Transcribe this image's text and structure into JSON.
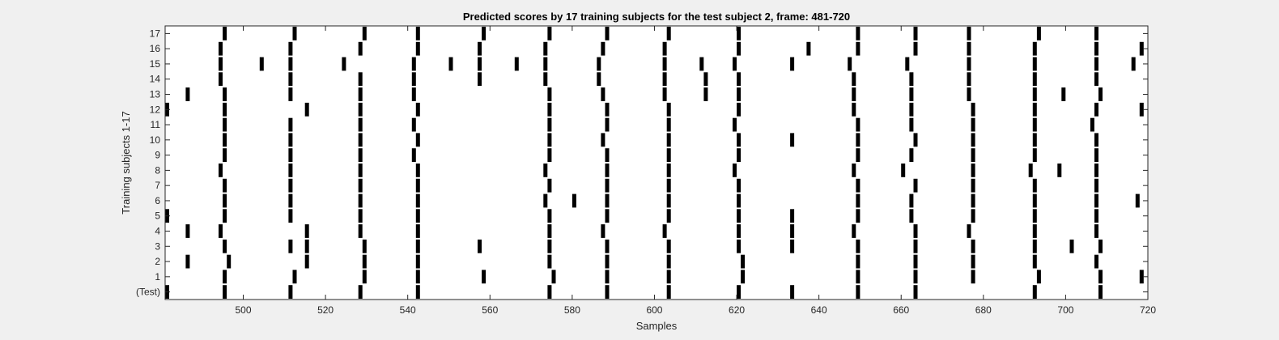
{
  "chart_data": {
    "type": "heatmap",
    "title": "Predicted scores by 17 training subjects for the test subject 2, frame: 481-720",
    "xlabel": "Samples",
    "ylabel": "Training subjects 1-17",
    "xlim": [
      481,
      720
    ],
    "xticks": [
      500,
      520,
      540,
      560,
      580,
      600,
      620,
      640,
      660,
      680,
      700,
      720
    ],
    "yticklabels": [
      "(Test)",
      "1",
      "2",
      "3",
      "4",
      "5",
      "6",
      "7",
      "8",
      "9",
      "10",
      "11",
      "12",
      "13",
      "14",
      "15",
      "16",
      "17"
    ],
    "grid": false,
    "colors": {
      "background": "#f0f0f0",
      "axes": "#ffffff",
      "mark": "#000000",
      "text": "#262626"
    },
    "rows": [
      {
        "label": "(Test)",
        "samples": [
          481,
          495,
          511,
          528,
          542,
          574,
          588,
          603,
          620,
          633,
          649,
          663,
          692,
          708
        ]
      },
      {
        "label": "1",
        "samples": [
          495,
          512,
          529,
          542,
          558,
          575,
          588,
          603,
          621,
          649,
          663,
          677,
          693,
          708,
          718
        ]
      },
      {
        "label": "2",
        "samples": [
          486,
          496,
          515,
          529,
          542,
          574,
          588,
          603,
          621,
          649,
          663,
          677,
          692,
          707
        ]
      },
      {
        "label": "3",
        "samples": [
          495,
          511,
          515,
          529,
          542,
          557,
          574,
          588,
          603,
          620,
          633,
          649,
          663,
          677,
          692,
          701,
          708
        ]
      },
      {
        "label": "4",
        "samples": [
          486,
          494,
          515,
          528,
          542,
          574,
          587,
          602,
          620,
          633,
          648,
          663,
          676,
          692,
          707
        ]
      },
      {
        "label": "5",
        "samples": [
          481,
          495,
          511,
          528,
          542,
          574,
          588,
          603,
          620,
          633,
          649,
          662,
          677,
          692,
          707
        ]
      },
      {
        "label": "6",
        "samples": [
          495,
          511,
          528,
          542,
          573,
          580,
          588,
          603,
          620,
          649,
          662,
          677,
          692,
          707,
          717
        ]
      },
      {
        "label": "7",
        "samples": [
          495,
          511,
          528,
          542,
          574,
          588,
          603,
          620,
          649,
          663,
          677,
          692,
          707
        ]
      },
      {
        "label": "8",
        "samples": [
          494,
          511,
          528,
          542,
          573,
          588,
          603,
          619,
          648,
          660,
          677,
          691,
          698,
          707
        ]
      },
      {
        "label": "9",
        "samples": [
          495,
          511,
          528,
          541,
          574,
          588,
          603,
          620,
          649,
          662,
          677,
          692,
          707
        ]
      },
      {
        "label": "10",
        "samples": [
          495,
          511,
          528,
          542,
          574,
          587,
          603,
          620,
          633,
          649,
          663,
          677,
          692,
          707
        ]
      },
      {
        "label": "11",
        "samples": [
          495,
          511,
          528,
          541,
          574,
          588,
          603,
          619,
          649,
          662,
          677,
          692,
          706
        ]
      },
      {
        "label": "12",
        "samples": [
          481,
          495,
          515,
          528,
          542,
          574,
          588,
          603,
          620,
          648,
          662,
          677,
          692,
          707,
          718
        ]
      },
      {
        "label": "13",
        "samples": [
          486,
          495,
          511,
          528,
          541,
          574,
          587,
          602,
          612,
          620,
          648,
          662,
          676,
          692,
          699,
          708
        ]
      },
      {
        "label": "14",
        "samples": [
          494,
          511,
          528,
          541,
          557,
          573,
          586,
          602,
          612,
          620,
          648,
          662,
          676,
          692,
          707
        ]
      },
      {
        "label": "15",
        "samples": [
          494,
          504,
          511,
          524,
          541,
          550,
          557,
          566,
          573,
          586,
          602,
          611,
          619,
          633,
          647,
          661,
          676,
          692,
          707,
          716
        ]
      },
      {
        "label": "16",
        "samples": [
          494,
          511,
          528,
          542,
          557,
          573,
          587,
          602,
          620,
          637,
          649,
          663,
          676,
          692,
          707,
          718
        ]
      },
      {
        "label": "17",
        "samples": [
          495,
          512,
          529,
          542,
          558,
          574,
          588,
          603,
          620,
          649,
          663,
          676,
          693,
          707
        ]
      }
    ]
  }
}
